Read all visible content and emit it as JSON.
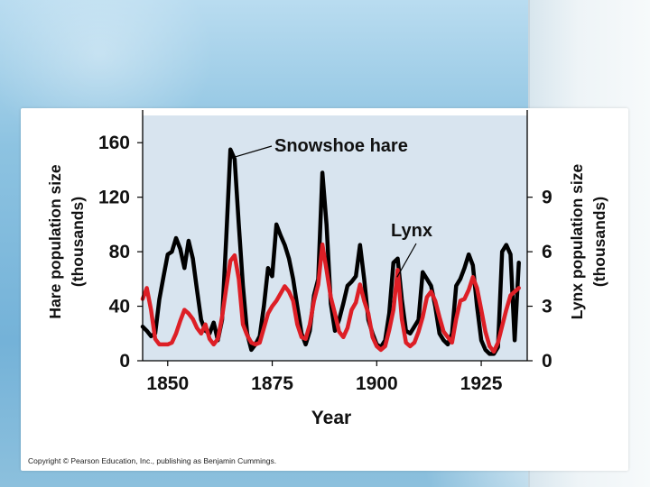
{
  "chart_data": {
    "type": "line",
    "xlabel": "Year",
    "ylabel_left": "Hare population size",
    "ylabel_left_unit": "(thousands)",
    "ylabel_right": "Lynx population size",
    "ylabel_right_unit": "(thousands)",
    "xlim": [
      1844,
      1936
    ],
    "ylim_left": [
      0,
      180
    ],
    "ylim_right": [
      0,
      13.5
    ],
    "x_ticks": [
      1850,
      1875,
      1900,
      1925
    ],
    "y_ticks_left": [
      0,
      40,
      80,
      120,
      160
    ],
    "y_ticks_right": [
      0,
      3,
      6,
      9
    ],
    "grid": false,
    "colors": {
      "hare": "#000000",
      "lynx": "#dd1f26",
      "plot_bg": "#d8e4ef"
    },
    "annotations": [
      {
        "text": "Snowshoe hare",
        "series": "Snowshoe hare"
      },
      {
        "text": "Lynx",
        "series": "Lynx"
      }
    ],
    "series": [
      {
        "name": "Snowshoe hare",
        "axis": "left",
        "x": [
          1844,
          1845,
          1846,
          1847,
          1848,
          1849,
          1850,
          1851,
          1852,
          1853,
          1854,
          1855,
          1856,
          1857,
          1858,
          1859,
          1860,
          1861,
          1862,
          1863,
          1864,
          1865,
          1866,
          1867,
          1868,
          1869,
          1870,
          1871,
          1872,
          1873,
          1874,
          1875,
          1876,
          1877,
          1878,
          1879,
          1880,
          1881,
          1882,
          1883,
          1884,
          1885,
          1886,
          1887,
          1888,
          1889,
          1890,
          1891,
          1892,
          1893,
          1894,
          1895,
          1896,
          1897,
          1898,
          1899,
          1900,
          1901,
          1902,
          1903,
          1904,
          1905,
          1906,
          1907,
          1908,
          1909,
          1910,
          1911,
          1912,
          1913,
          1914,
          1915,
          1916,
          1917,
          1918,
          1919,
          1920,
          1921,
          1922,
          1923,
          1924,
          1925,
          1926,
          1927,
          1928,
          1929,
          1930,
          1931,
          1932,
          1933,
          1934
        ],
        "values": [
          25,
          22,
          18,
          20,
          45,
          62,
          78,
          80,
          90,
          82,
          68,
          88,
          75,
          52,
          30,
          22,
          20,
          28,
          15,
          30,
          90,
          155,
          148,
          100,
          55,
          20,
          8,
          12,
          18,
          40,
          68,
          62,
          100,
          92,
          85,
          75,
          60,
          40,
          20,
          12,
          22,
          48,
          60,
          138,
          100,
          42,
          22,
          30,
          42,
          55,
          58,
          62,
          85,
          60,
          30,
          20,
          12,
          10,
          15,
          35,
          72,
          75,
          45,
          22,
          20,
          25,
          30,
          65,
          60,
          55,
          40,
          20,
          15,
          12,
          20,
          55,
          60,
          68,
          78,
          70,
          40,
          15,
          8,
          5,
          5,
          10,
          80,
          85,
          78,
          15,
          72
        ]
      },
      {
        "name": "Lynx",
        "axis": "right",
        "x": [
          1844,
          1845,
          1846,
          1847,
          1848,
          1849,
          1850,
          1851,
          1852,
          1853,
          1854,
          1855,
          1856,
          1857,
          1858,
          1859,
          1860,
          1861,
          1862,
          1863,
          1864,
          1865,
          1866,
          1867,
          1868,
          1869,
          1870,
          1871,
          1872,
          1873,
          1874,
          1875,
          1876,
          1877,
          1878,
          1879,
          1880,
          1881,
          1882,
          1883,
          1884,
          1885,
          1886,
          1887,
          1888,
          1889,
          1890,
          1891,
          1892,
          1893,
          1894,
          1895,
          1896,
          1897,
          1898,
          1899,
          1900,
          1901,
          1902,
          1903,
          1904,
          1905,
          1906,
          1907,
          1908,
          1909,
          1910,
          1911,
          1912,
          1913,
          1914,
          1915,
          1916,
          1917,
          1918,
          1919,
          1920,
          1921,
          1922,
          1923,
          1924,
          1925,
          1926,
          1927,
          1928,
          1929,
          1930,
          1931,
          1932,
          1933,
          1934
        ],
        "values": [
          3.4,
          4.0,
          2.8,
          1.2,
          0.9,
          0.9,
          0.9,
          1.0,
          1.5,
          2.2,
          2.8,
          2.6,
          2.3,
          1.8,
          1.5,
          2.0,
          1.2,
          0.9,
          1.2,
          2.4,
          4.0,
          5.5,
          5.8,
          4.5,
          2.0,
          1.4,
          1.0,
          0.9,
          1.0,
          1.8,
          2.6,
          3.0,
          3.3,
          3.7,
          4.1,
          3.8,
          3.3,
          2.0,
          1.3,
          1.2,
          2.0,
          3.3,
          4.2,
          6.4,
          5.0,
          3.5,
          2.6,
          1.6,
          1.3,
          1.8,
          2.8,
          3.2,
          4.2,
          3.3,
          2.6,
          1.3,
          0.8,
          0.6,
          0.8,
          1.7,
          2.8,
          5.0,
          2.3,
          1.0,
          0.8,
          1.0,
          1.6,
          2.4,
          3.5,
          3.8,
          3.3,
          2.4,
          1.6,
          1.3,
          1.0,
          2.3,
          3.3,
          3.4,
          3.9,
          4.6,
          4.0,
          2.8,
          1.6,
          0.8,
          0.5,
          1.0,
          1.9,
          2.8,
          3.6,
          3.8,
          4.0
        ]
      }
    ]
  },
  "footer": {
    "copyright": "Copyright © Pearson Education, Inc., publishing as Benjamin Cummings."
  }
}
